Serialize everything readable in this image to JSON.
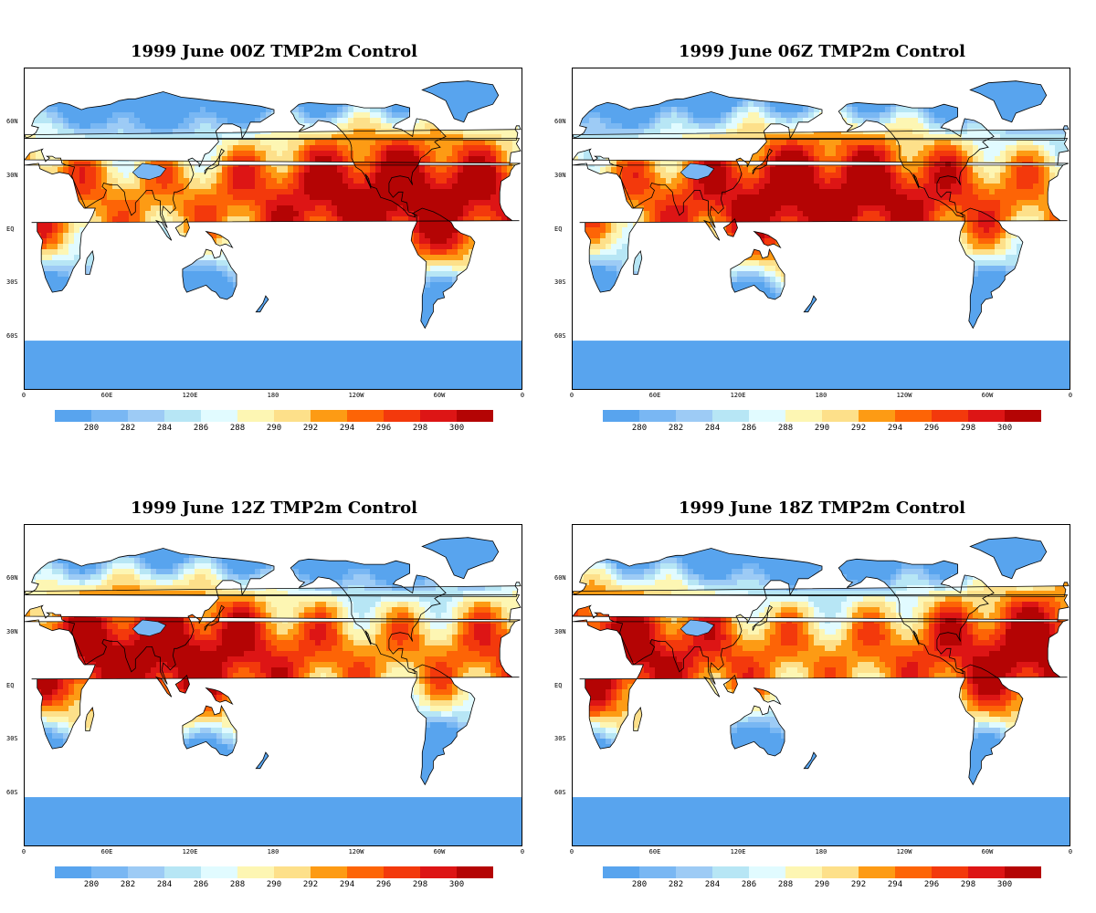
{
  "panels": [
    {
      "title": "1999 June  00Z TMP2m Control",
      "heat_center_lon": -90
    },
    {
      "title": "1999  June 06Z TMP2m Control",
      "heat_center_lon": -180
    },
    {
      "title": "1999  June 12Z TMP2m Control",
      "heat_center_lon": 90
    },
    {
      "title": "1999  June 18Z TMP2m Control",
      "heat_center_lon": 0
    }
  ],
  "lat_labels": [
    "60N",
    "30N",
    "EQ",
    "30S",
    "60S"
  ],
  "lon_labels": [
    "0",
    "60E",
    "120E",
    "180",
    "120W",
    "60W",
    "0"
  ],
  "colorbar": {
    "labels": [
      "280",
      "282",
      "284",
      "286",
      "288",
      "290",
      "292",
      "294",
      "296",
      "298",
      "300"
    ],
    "colors": [
      "#58a4ee",
      "#79b7f3",
      "#9dcbf5",
      "#b7e6f5",
      "#e1fbff",
      "#fdf6b3",
      "#fde08a",
      "#fd9b14",
      "#fd6406",
      "#f3390c",
      "#dd1515",
      "#b40404"
    ]
  }
}
